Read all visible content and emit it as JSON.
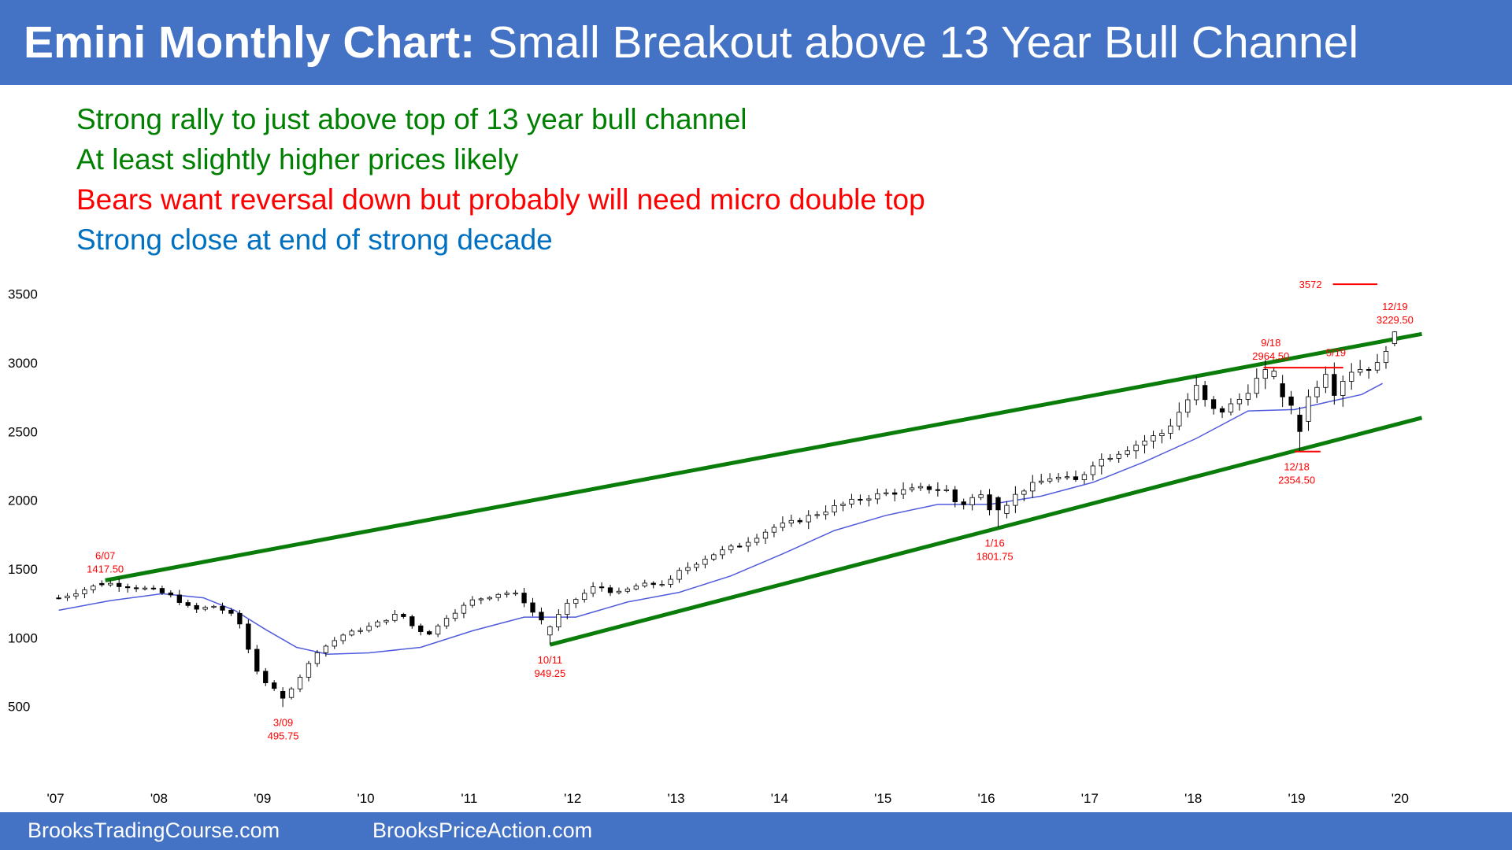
{
  "header": {
    "title_bold": "Emini Monthly Chart:",
    "title_rest": "Small Breakout above 13 Year Bull Channel",
    "background": "#4472c4"
  },
  "notes": [
    {
      "text": "Strong rally to just above top of 13 year bull channel",
      "color": "#008000"
    },
    {
      "text": "At least slightly higher prices likely",
      "color": "#008000"
    },
    {
      "text": "Bears want reversal down but probably will need micro double top",
      "color": "#ff0000"
    },
    {
      "text": "Strong close at end of strong decade",
      "color": "#0070c0"
    }
  ],
  "footer": {
    "left": "BrooksTradingCourse.com",
    "right": "BrooksPriceAction.com"
  },
  "chart_data": {
    "type": "candlestick",
    "title": "",
    "x_range": [
      2006.95,
      2020.1
    ],
    "ylim": [
      200,
      3750
    ],
    "y_ticks": [
      500,
      1000,
      1500,
      2000,
      2500,
      3000,
      3500
    ],
    "x_ticks": [
      {
        "label": "'07",
        "x": 2007
      },
      {
        "label": "'08",
        "x": 2008
      },
      {
        "label": "'09",
        "x": 2009
      },
      {
        "label": "'10",
        "x": 2010
      },
      {
        "label": "'11",
        "x": 2011
      },
      {
        "label": "'12",
        "x": 2012
      },
      {
        "label": "'13",
        "x": 2013
      },
      {
        "label": "'14",
        "x": 2014
      },
      {
        "label": "'15",
        "x": 2015
      },
      {
        "label": "'16",
        "x": 2016
      },
      {
        "label": "'17",
        "x": 2017
      },
      {
        "label": "'18",
        "x": 2018
      },
      {
        "label": "'19",
        "x": 2019
      },
      {
        "label": "'20",
        "x": 2020
      }
    ],
    "anchors": [
      [
        2007.0,
        1290
      ],
      [
        2007.45,
        1400
      ],
      [
        2007.7,
        1370
      ],
      [
        2007.9,
        1350
      ],
      [
        2008.1,
        1300
      ],
      [
        2008.3,
        1200
      ],
      [
        2008.5,
        1230
      ],
      [
        2008.65,
        1180
      ],
      [
        2008.75,
        1100
      ],
      [
        2008.85,
        880
      ],
      [
        2008.95,
        700
      ],
      [
        2009.05,
        650
      ],
      [
        2009.17,
        560
      ],
      [
        2009.3,
        680
      ],
      [
        2009.5,
        900
      ],
      [
        2009.75,
        1020
      ],
      [
        2010.0,
        1080
      ],
      [
        2010.3,
        1180
      ],
      [
        2010.45,
        1060
      ],
      [
        2010.6,
        1030
      ],
      [
        2010.75,
        1150
      ],
      [
        2011.0,
        1270
      ],
      [
        2011.3,
        1330
      ],
      [
        2011.45,
        1310
      ],
      [
        2011.6,
        1170
      ],
      [
        2011.75,
        1080
      ],
      [
        2011.9,
        1230
      ],
      [
        2012.2,
        1380
      ],
      [
        2012.4,
        1320
      ],
      [
        2012.6,
        1380
      ],
      [
        2012.9,
        1400
      ],
      [
        2013.0,
        1480
      ],
      [
        2013.3,
        1600
      ],
      [
        2013.6,
        1680
      ],
      [
        2013.9,
        1800
      ],
      [
        2014.1,
        1840
      ],
      [
        2014.5,
        1950
      ],
      [
        2014.8,
        2020
      ],
      [
        2015.0,
        2050
      ],
      [
        2015.4,
        2090
      ],
      [
        2015.6,
        2070
      ],
      [
        2015.7,
        1950
      ],
      [
        2015.9,
        2050
      ],
      [
        2016.05,
        1900
      ],
      [
        2016.3,
        2070
      ],
      [
        2016.6,
        2170
      ],
      [
        2016.85,
        2140
      ],
      [
        2017.0,
        2270
      ],
      [
        2017.4,
        2400
      ],
      [
        2017.7,
        2500
      ],
      [
        2018.0,
        2820
      ],
      [
        2018.1,
        2700
      ],
      [
        2018.2,
        2630
      ],
      [
        2018.4,
        2720
      ],
      [
        2018.6,
        2890
      ],
      [
        2018.72,
        2950
      ],
      [
        2018.8,
        2720
      ],
      [
        2018.9,
        2750
      ],
      [
        2018.97,
        2520
      ],
      [
        2019.05,
        2710
      ],
      [
        2019.25,
        2940
      ],
      [
        2019.35,
        2760
      ],
      [
        2019.45,
        2940
      ],
      [
        2019.6,
        2960
      ],
      [
        2019.75,
        2980
      ],
      [
        2019.85,
        3140
      ],
      [
        2019.92,
        3225
      ]
    ],
    "highlighted_bars": [
      {
        "x": 2007.45,
        "open": 1395,
        "high": 1417.5,
        "low": 1370,
        "close": 1385
      },
      {
        "x": 2009.17,
        "open": 610,
        "high": 640,
        "low": 495.75,
        "close": 560
      },
      {
        "x": 2011.75,
        "open": 1020,
        "high": 1090,
        "low": 949.25,
        "close": 1080
      },
      {
        "x": 2016.05,
        "open": 2020,
        "high": 2030,
        "low": 1801.75,
        "close": 1930
      },
      {
        "x": 2018.72,
        "open": 2900,
        "high": 2964.5,
        "low": 2880,
        "close": 2940
      },
      {
        "x": 2018.97,
        "open": 2620,
        "high": 2680,
        "low": 2354.5,
        "close": 2500
      },
      {
        "x": 2019.92,
        "open": 3140,
        "high": 3229.5,
        "low": 3120,
        "close": 3225
      }
    ],
    "moving_average": [
      [
        2007.0,
        1200
      ],
      [
        2007.5,
        1270
      ],
      [
        2008.0,
        1320
      ],
      [
        2008.4,
        1290
      ],
      [
        2008.7,
        1200
      ],
      [
        2009.0,
        1060
      ],
      [
        2009.3,
        930
      ],
      [
        2009.6,
        880
      ],
      [
        2010.0,
        890
      ],
      [
        2010.5,
        930
      ],
      [
        2011.0,
        1050
      ],
      [
        2011.5,
        1150
      ],
      [
        2012.0,
        1150
      ],
      [
        2012.5,
        1260
      ],
      [
        2013.0,
        1330
      ],
      [
        2013.5,
        1450
      ],
      [
        2014.0,
        1610
      ],
      [
        2014.5,
        1780
      ],
      [
        2015.0,
        1890
      ],
      [
        2015.5,
        1970
      ],
      [
        2016.0,
        1970
      ],
      [
        2016.5,
        2030
      ],
      [
        2017.0,
        2130
      ],
      [
        2017.5,
        2280
      ],
      [
        2018.0,
        2450
      ],
      [
        2018.5,
        2650
      ],
      [
        2018.95,
        2660
      ],
      [
        2019.3,
        2720
      ],
      [
        2019.6,
        2770
      ],
      [
        2019.8,
        2850
      ]
    ],
    "channel_lines": [
      {
        "name": "top",
        "from": [
          2007.45,
          1417.5
        ],
        "to": [
          2020.18,
          3210
        ]
      },
      {
        "name": "bottom",
        "from": [
          2011.75,
          949.25
        ],
        "to": [
          2020.18,
          2600
        ]
      }
    ],
    "horizontal_lines": [
      {
        "y": 3572,
        "x_from": 2019.32,
        "x_to": 2019.75,
        "label": "3572",
        "color": "#ff0000"
      },
      {
        "y": 2964.5,
        "x_from": 2018.65,
        "x_to": 2019.42,
        "color": "#ff0000"
      },
      {
        "y": 2354.5,
        "x_from": 2018.95,
        "x_to": 2019.2,
        "color": "#ff0000"
      }
    ],
    "annotations": [
      {
        "date": "6/07",
        "value": "1417.50",
        "x": 2007.45,
        "y": 1417.5,
        "pos": "above"
      },
      {
        "date": "3/09",
        "value": "495.75",
        "x": 2009.17,
        "y": 495.75,
        "pos": "below"
      },
      {
        "date": "10/11",
        "value": "949.25",
        "x": 2011.75,
        "y": 949.25,
        "pos": "below"
      },
      {
        "date": "1/16",
        "value": "1801.75",
        "x": 2016.05,
        "y": 1801.75,
        "pos": "below"
      },
      {
        "date": "9/18",
        "value": "2964.50",
        "x": 2018.72,
        "y": 2964.5,
        "pos": "above"
      },
      {
        "date": "12/18",
        "value": "2354.50",
        "x": 2018.97,
        "y": 2354.5,
        "pos": "below"
      },
      {
        "date": "5/19",
        "value": "",
        "x": 2019.35,
        "y": 2990,
        "pos": "above"
      },
      {
        "date": "12/19",
        "value": "3229.50",
        "x": 2019.92,
        "y": 3229.5,
        "pos": "above"
      }
    ],
    "colors": {
      "channel": "#0a7c0a",
      "moving_average": "#4f5bdc",
      "annotation": "#ff0000",
      "bar_up": "#ffffff",
      "bar_down": "#000000"
    }
  }
}
